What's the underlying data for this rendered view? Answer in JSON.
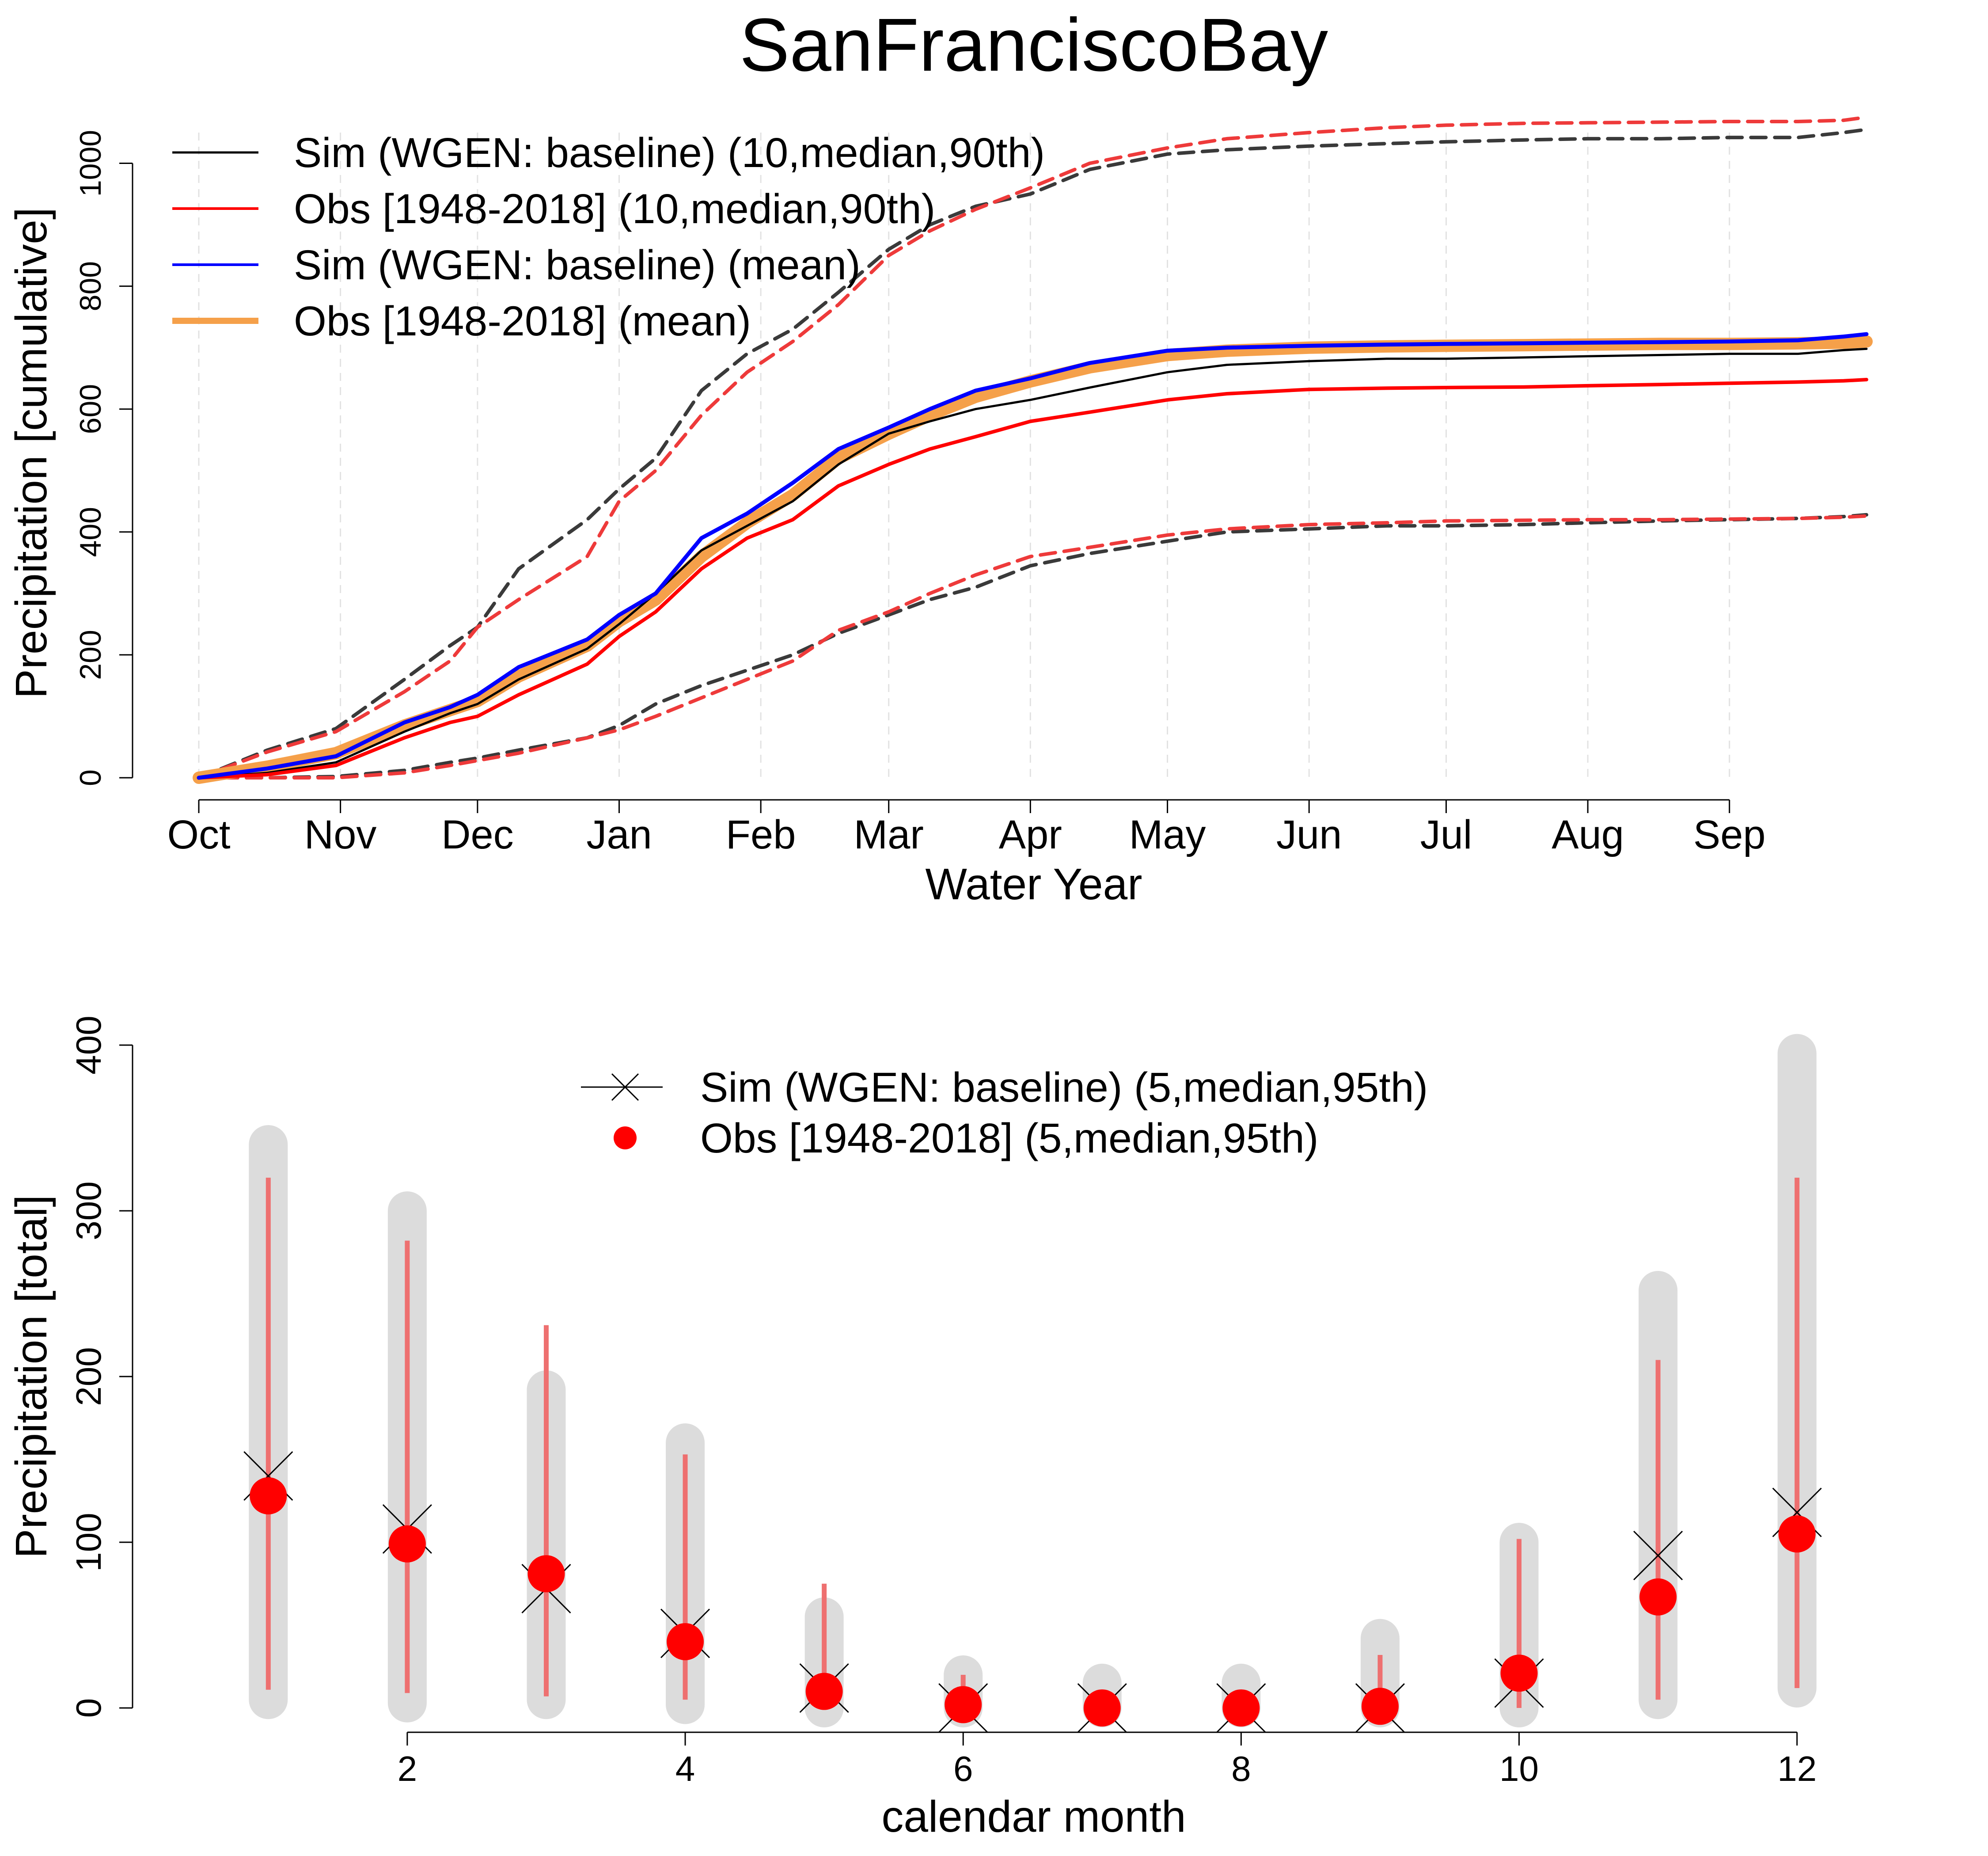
{
  "title": "SanFranciscoBay",
  "chart_data": [
    {
      "type": "line",
      "ylabel": "Precipitation [cumulative]",
      "xlabel": "Water Year",
      "xlim": [
        0,
        365
      ],
      "ylim": [
        0,
        1050
      ],
      "y_ticks": [
        0,
        200,
        400,
        600,
        800,
        1000
      ],
      "x_tick_days": [
        0,
        31,
        61,
        92,
        123,
        151,
        182,
        212,
        243,
        273,
        304,
        335
      ],
      "x_tick_labels": [
        "Oct",
        "Nov",
        "Dec",
        "Jan",
        "Feb",
        "Mar",
        "Apr",
        "May",
        "Jun",
        "Jul",
        "Aug",
        "Sep"
      ],
      "grid": "vertical dashed",
      "legend": {
        "position": "top-left",
        "entries": [
          "Sim (WGEN: baseline) (10,median,90th)",
          "Obs [1948-2018] (10,median,90th)",
          "Sim (WGEN: baseline) (mean)",
          "Obs [1948-2018] (mean)"
        ]
      },
      "colors": {
        "sim": "#000000",
        "sim_band": "#3a3a3a",
        "obs": "#ff0000",
        "obs_band": "#ee3a3a",
        "sim_mean": "#0000ff",
        "obs_mean": "#f5a04a"
      },
      "series": [
        {
          "name": "Sim (WGEN: baseline) (10,median,90th)",
          "style": "dashed",
          "role": "p10",
          "x": [
            0,
            15,
            30,
            45,
            55,
            61,
            70,
            85,
            92,
            100,
            110,
            120,
            130,
            140,
            151,
            160,
            170,
            182,
            195,
            212,
            225,
            243,
            260,
            273,
            290,
            304,
            320,
            335,
            350,
            360,
            365
          ],
          "y": [
            0,
            0,
            2,
            12,
            25,
            32,
            45,
            65,
            85,
            120,
            150,
            175,
            200,
            235,
            265,
            290,
            310,
            345,
            365,
            385,
            400,
            405,
            410,
            410,
            412,
            415,
            418,
            420,
            422,
            425,
            428
          ]
        },
        {
          "name": "Sim (WGEN: baseline) (10,median,90th)",
          "style": "solid",
          "role": "median",
          "x": [
            0,
            15,
            30,
            45,
            55,
            61,
            70,
            85,
            92,
            100,
            110,
            120,
            130,
            140,
            151,
            160,
            170,
            182,
            195,
            212,
            225,
            243,
            260,
            273,
            290,
            304,
            320,
            335,
            350,
            360,
            365
          ],
          "y": [
            0,
            8,
            25,
            75,
            105,
            120,
            160,
            210,
            250,
            300,
            370,
            410,
            450,
            510,
            560,
            580,
            600,
            615,
            635,
            660,
            672,
            678,
            682,
            682,
            684,
            686,
            688,
            690,
            690,
            696,
            698
          ]
        },
        {
          "name": "Sim (WGEN: baseline) (10,median,90th)",
          "style": "dashed",
          "role": "p90",
          "x": [
            0,
            15,
            30,
            45,
            55,
            61,
            70,
            85,
            92,
            100,
            110,
            120,
            130,
            140,
            151,
            160,
            170,
            182,
            195,
            212,
            225,
            243,
            260,
            273,
            290,
            304,
            320,
            335,
            350,
            360,
            365
          ],
          "y": [
            0,
            45,
            80,
            160,
            215,
            245,
            340,
            420,
            470,
            520,
            630,
            690,
            730,
            790,
            860,
            900,
            930,
            950,
            990,
            1015,
            1022,
            1028,
            1032,
            1035,
            1038,
            1040,
            1040,
            1042,
            1042,
            1050,
            1055
          ]
        },
        {
          "name": "Obs [1948-2018] (10,median,90th)",
          "style": "dashed",
          "role": "p10",
          "x": [
            0,
            15,
            30,
            45,
            55,
            61,
            70,
            85,
            92,
            100,
            110,
            120,
            130,
            140,
            151,
            160,
            170,
            182,
            195,
            212,
            225,
            243,
            260,
            273,
            290,
            304,
            320,
            335,
            350,
            360,
            365
          ],
          "y": [
            0,
            0,
            0,
            8,
            20,
            28,
            40,
            65,
            78,
            100,
            130,
            160,
            190,
            240,
            270,
            300,
            330,
            360,
            375,
            395,
            405,
            412,
            415,
            418,
            419,
            420,
            420,
            421,
            422,
            424,
            426
          ]
        },
        {
          "name": "Obs [1948-2018] (10,median,90th)",
          "style": "solid",
          "role": "median",
          "x": [
            0,
            15,
            30,
            45,
            55,
            61,
            70,
            85,
            92,
            100,
            110,
            120,
            130,
            140,
            151,
            160,
            170,
            182,
            195,
            212,
            225,
            243,
            260,
            273,
            290,
            304,
            320,
            335,
            350,
            360,
            365
          ],
          "y": [
            0,
            5,
            20,
            65,
            90,
            100,
            135,
            185,
            230,
            270,
            340,
            390,
            420,
            475,
            510,
            535,
            555,
            580,
            595,
            615,
            625,
            632,
            634,
            635,
            636,
            638,
            640,
            642,
            644,
            646,
            648
          ]
        },
        {
          "name": "Obs [1948-2018] (10,median,90th)",
          "style": "dashed",
          "role": "p90",
          "x": [
            0,
            15,
            30,
            45,
            55,
            61,
            70,
            85,
            92,
            100,
            110,
            120,
            130,
            140,
            151,
            160,
            170,
            182,
            195,
            212,
            225,
            243,
            260,
            273,
            290,
            304,
            320,
            335,
            350,
            360,
            365
          ],
          "y": [
            0,
            42,
            75,
            140,
            190,
            245,
            290,
            360,
            450,
            500,
            590,
            660,
            710,
            770,
            850,
            890,
            925,
            960,
            1000,
            1025,
            1040,
            1050,
            1058,
            1062,
            1065,
            1066,
            1067,
            1068,
            1068,
            1070,
            1075
          ]
        },
        {
          "name": "Sim (WGEN: baseline) (mean)",
          "style": "solid",
          "role": "mean",
          "x": [
            0,
            15,
            30,
            45,
            55,
            61,
            70,
            85,
            92,
            100,
            110,
            120,
            130,
            140,
            151,
            160,
            170,
            182,
            195,
            212,
            225,
            243,
            260,
            273,
            290,
            304,
            320,
            335,
            350,
            360,
            365
          ],
          "y": [
            0,
            15,
            35,
            90,
            115,
            135,
            180,
            225,
            265,
            300,
            390,
            430,
            480,
            535,
            570,
            600,
            630,
            650,
            675,
            695,
            700,
            703,
            705,
            706,
            707,
            708,
            709,
            710,
            712,
            718,
            722
          ]
        },
        {
          "name": "Obs [1948-2018] (mean)",
          "style": "thick",
          "role": "mean",
          "x": [
            0,
            15,
            30,
            45,
            55,
            61,
            70,
            85,
            92,
            100,
            110,
            120,
            130,
            140,
            151,
            160,
            170,
            182,
            195,
            212,
            225,
            243,
            260,
            273,
            290,
            304,
            320,
            335,
            350,
            360,
            365
          ],
          "y": [
            0,
            18,
            40,
            85,
            110,
            125,
            165,
            215,
            255,
            290,
            360,
            415,
            460,
            520,
            560,
            590,
            620,
            645,
            668,
            688,
            695,
            700,
            702,
            703,
            704,
            705,
            706,
            706,
            707,
            708,
            710
          ]
        }
      ]
    },
    {
      "type": "scatter",
      "ylabel": "Precipitation [total]",
      "xlabel": "calendar month",
      "xlim": [
        0.5,
        12.5
      ],
      "ylim": [
        0,
        400
      ],
      "x_ticks": [
        2,
        4,
        6,
        8,
        10,
        12
      ],
      "y_ticks": [
        0,
        100,
        200,
        300,
        400
      ],
      "legend": {
        "position": "top-center",
        "entries": [
          "Sim (WGEN: baseline) (5,median,95th)",
          "Obs [1948-2018] (5,median,95th)"
        ]
      },
      "colors": {
        "sim_marker": "#000000",
        "sim_band": "#dcdcdc",
        "obs_marker": "#ff0000",
        "obs_range": "#ee7070"
      },
      "months": [
        1,
        2,
        3,
        4,
        5,
        6,
        7,
        8,
        9,
        10,
        11,
        12
      ],
      "sim": {
        "name": "Sim (WGEN: baseline) (5,median,95th)",
        "p5": [
          5,
          3,
          5,
          2,
          0,
          0,
          0,
          0,
          0,
          0,
          5,
          12
        ],
        "median": [
          140,
          108,
          72,
          45,
          12,
          0,
          0,
          0,
          0,
          15,
          92,
          118
        ],
        "p95": [
          340,
          300,
          192,
          160,
          55,
          20,
          15,
          15,
          42,
          100,
          252,
          395
        ]
      },
      "obs": {
        "name": "Obs [1948-2018] (5,median,95th)",
        "p5": [
          11,
          9,
          7,
          5,
          0,
          0,
          0,
          0,
          0,
          0,
          5,
          12
        ],
        "median": [
          128,
          99,
          81,
          40,
          10,
          2,
          0,
          0,
          1,
          21,
          67,
          105
        ],
        "p95": [
          320,
          282,
          231,
          153,
          75,
          20,
          11,
          10,
          32,
          102,
          210,
          320
        ]
      }
    }
  ]
}
